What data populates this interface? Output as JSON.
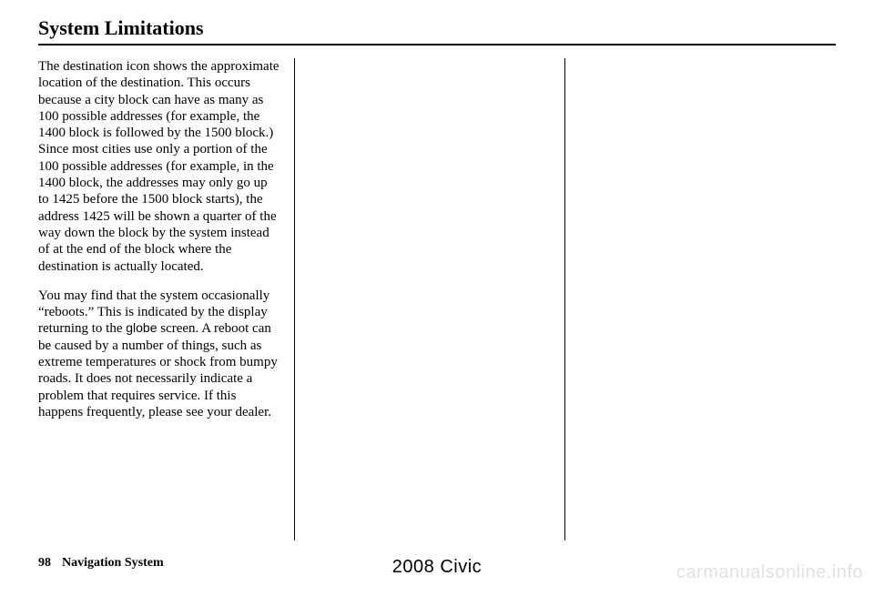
{
  "heading": "System Limitations",
  "paragraphs": {
    "p1": "The destination icon shows the approximate location of the destination. This occurs because a city block can have as many as 100 possible addresses (for example, the 1400 block is followed by the 1500 block.) Since most cities use only a portion of the 100 possible addresses (for example, in the 1400 block, the addresses may only go up to 1425 before the 1500 block starts), the address 1425 will be shown a quarter of the way down the block by the system instead of at the end of the block where the destination is actually located.",
    "p2_a": "You may find that the system occasionally “reboots.” This is indicated by the display returning to the ",
    "p2_globe": "globe",
    "p2_b": " screen. A reboot can be caused by a number of things, such as extreme temperatures or shock from bumpy roads. It does not necessarily indicate a problem that requires service. If this happens frequently, please see your dealer."
  },
  "footer": {
    "page_number": "98",
    "section": "Navigation System",
    "center": "2008  Civic"
  },
  "watermark": "carmanualsonline.info"
}
